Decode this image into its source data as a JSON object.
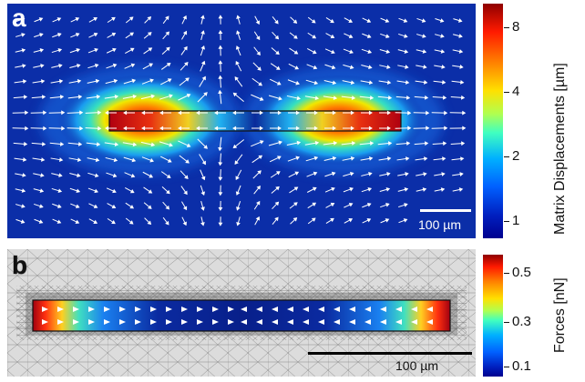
{
  "panel_a": {
    "letter": "a",
    "scale_bar_label": "100 µm",
    "colorbar": {
      "title": "Matrix Displacements [µm]",
      "ticks": [
        {
          "label": "8",
          "value": 8
        },
        {
          "label": "4",
          "value": 4
        },
        {
          "label": "2",
          "value": 2
        },
        {
          "label": "1",
          "value": 1
        }
      ],
      "scale": "log"
    }
  },
  "panel_b": {
    "letter": "b",
    "scale_bar_label": "100 µm",
    "colorbar": {
      "title": "Forces [nN]",
      "ticks": [
        {
          "label": "0.5",
          "value": 0.5
        },
        {
          "label": "0.3",
          "value": 0.3
        },
        {
          "label": "0.1",
          "value": 0.1
        }
      ],
      "scale": "linear"
    }
  },
  "colors": {
    "jet_low": "#00008f",
    "jet_mid": "#66ff99",
    "jet_high": "#8f0000",
    "background_field": "#0b2ea8",
    "mesh_background": "#d9d9d9",
    "mesh_lines": "#777777"
  }
}
